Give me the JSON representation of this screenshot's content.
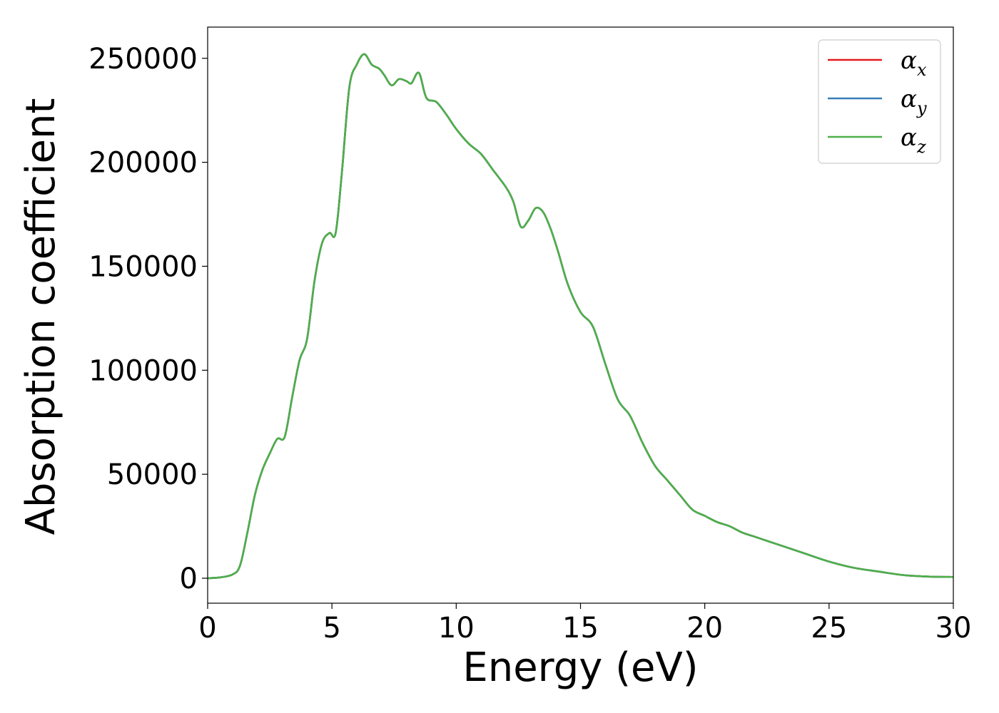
{
  "chart_data": {
    "type": "line",
    "xlabel": "Energy (eV)",
    "ylabel": "Absorption coefficient",
    "xlim": [
      0,
      30
    ],
    "ylim": [
      -12000,
      265000
    ],
    "x_ticks": [
      0,
      5,
      10,
      15,
      20,
      25,
      30
    ],
    "y_ticks": [
      0,
      50000,
      100000,
      150000,
      200000,
      250000
    ],
    "grid": false,
    "legend_position": "top-right",
    "x": [
      0,
      0.5,
      1,
      1.3,
      1.6,
      1.9,
      2.2,
      2.5,
      2.8,
      3.1,
      3.4,
      3.7,
      4,
      4.3,
      4.6,
      4.9,
      5.15,
      5.4,
      5.7,
      6,
      6.3,
      6.6,
      6.9,
      7.1,
      7.4,
      7.7,
      8.0,
      8.2,
      8.5,
      8.8,
      9.2,
      9.6,
      10,
      10.5,
      11,
      11.5,
      12,
      12.3,
      12.6,
      12.9,
      13.2,
      13.5,
      13.8,
      14.1,
      14.5,
      15,
      15.5,
      16,
      16.5,
      17,
      17.5,
      18,
      18.5,
      19,
      19.5,
      20,
      20.5,
      21,
      21.5,
      22,
      22.5,
      23,
      24,
      25,
      26,
      27,
      28,
      29,
      30
    ],
    "series": [
      {
        "name": "α",
        "sub": "x",
        "color": "#e41a1c",
        "values": [
          0,
          400,
          1800,
          6000,
          22000,
          40000,
          52000,
          60000,
          67000,
          68000,
          87000,
          105000,
          115000,
          143000,
          161000,
          166000,
          166000,
          195000,
          236000,
          247000,
          252000,
          247000,
          245000,
          242000,
          237000,
          240000,
          239000,
          238000,
          243000,
          231000,
          229000,
          223000,
          216000,
          209000,
          204000,
          196000,
          188000,
          181000,
          169000,
          172000,
          178000,
          176000,
          168000,
          157000,
          141000,
          128000,
          121000,
          103000,
          86000,
          78000,
          65000,
          54000,
          47000,
          40000,
          33000,
          30000,
          27000,
          25000,
          22000,
          20000,
          18000,
          16000,
          12000,
          8000,
          5000,
          3200,
          1500,
          800,
          600
        ]
      },
      {
        "name": "α",
        "sub": "y",
        "color": "#377eb8",
        "values": [
          0,
          400,
          1800,
          6000,
          22000,
          40000,
          52000,
          60000,
          67000,
          68000,
          87000,
          105000,
          115000,
          143000,
          161000,
          166000,
          166000,
          195000,
          236000,
          247000,
          252000,
          247000,
          245000,
          242000,
          237000,
          240000,
          239000,
          238000,
          243000,
          231000,
          229000,
          223000,
          216000,
          209000,
          204000,
          196000,
          188000,
          181000,
          169000,
          172000,
          178000,
          176000,
          168000,
          157000,
          141000,
          128000,
          121000,
          103000,
          86000,
          78000,
          65000,
          54000,
          47000,
          40000,
          33000,
          30000,
          27000,
          25000,
          22000,
          20000,
          18000,
          16000,
          12000,
          8000,
          5000,
          3200,
          1500,
          800,
          600
        ]
      },
      {
        "name": "α",
        "sub": "z",
        "color": "#4daf4a",
        "values": [
          0,
          400,
          1800,
          6000,
          22000,
          40000,
          52000,
          60000,
          67000,
          68000,
          87000,
          105000,
          115000,
          143000,
          161000,
          166000,
          166000,
          195000,
          236000,
          247000,
          252000,
          247000,
          245000,
          242000,
          237000,
          240000,
          239000,
          238000,
          243000,
          231000,
          229000,
          223000,
          216000,
          209000,
          204000,
          196000,
          188000,
          181000,
          169000,
          172000,
          178000,
          176000,
          168000,
          157000,
          141000,
          128000,
          121000,
          103000,
          86000,
          78000,
          65000,
          54000,
          47000,
          40000,
          33000,
          30000,
          27000,
          25000,
          22000,
          20000,
          18000,
          16000,
          12000,
          8000,
          5000,
          3200,
          1500,
          800,
          600
        ]
      }
    ]
  }
}
